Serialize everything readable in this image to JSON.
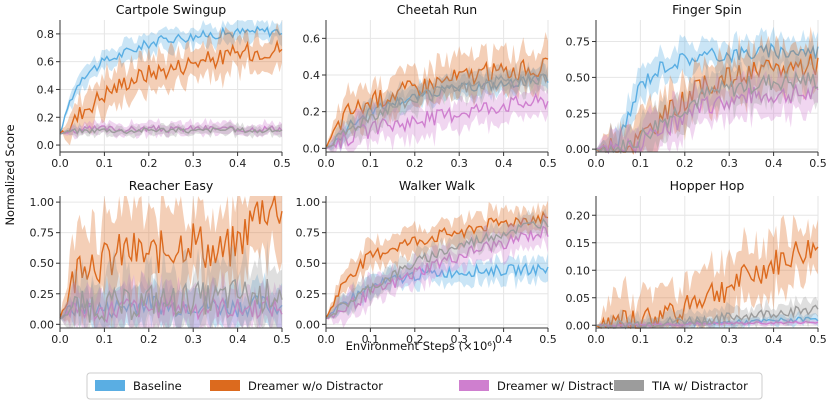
{
  "figure": {
    "ylabel": "Normalized Score",
    "xlabel": "Environment Steps (×10⁶)"
  },
  "legend": [
    {
      "name": "Baseline",
      "color": "#5aaee3"
    },
    {
      "name": "Dreamer w/o Distractor",
      "color": "#dc6a1e"
    },
    {
      "name": "Dreamer w/ Distractor",
      "color": "#cf7fcf"
    },
    {
      "name": "TIA w/ Distractor",
      "color": "#9c9c9c"
    }
  ],
  "chart_data": [
    {
      "type": "line",
      "title": "Cartpole Swingup",
      "xlim": [
        0,
        0.5
      ],
      "ylim": [
        -0.05,
        0.9
      ],
      "xticks": [
        "0.0",
        "0.1",
        "0.2",
        "0.3",
        "0.4",
        "0.5"
      ],
      "yticks": [
        "0.0",
        "0.2",
        "0.4",
        "0.6",
        "0.8"
      ],
      "ytick_values": [
        0,
        0.2,
        0.4,
        0.6,
        0.8
      ],
      "x": [
        0,
        0.02,
        0.05,
        0.1,
        0.15,
        0.2,
        0.25,
        0.3,
        0.35,
        0.4,
        0.45,
        0.5
      ],
      "series": [
        {
          "name": "Baseline",
          "values": [
            0.08,
            0.3,
            0.5,
            0.6,
            0.67,
            0.73,
            0.77,
            0.78,
            0.8,
            0.81,
            0.82,
            0.82
          ],
          "spread": 0.08
        },
        {
          "name": "Dreamer w/o Distractor",
          "values": [
            0.08,
            0.12,
            0.25,
            0.37,
            0.46,
            0.52,
            0.55,
            0.6,
            0.62,
            0.66,
            0.68,
            0.7
          ],
          "spread": 0.15
        },
        {
          "name": "Dreamer w/ Distractor",
          "values": [
            0.08,
            0.1,
            0.11,
            0.12,
            0.11,
            0.12,
            0.11,
            0.12,
            0.12,
            0.11,
            0.12,
            0.12
          ],
          "spread": 0.05
        },
        {
          "name": "TIA w/ Distractor",
          "values": [
            0.08,
            0.1,
            0.1,
            0.11,
            0.1,
            0.11,
            0.11,
            0.1,
            0.11,
            0.11,
            0.1,
            0.11
          ],
          "spread": 0.04
        }
      ]
    },
    {
      "type": "line",
      "title": "Cheetah Run",
      "xlim": [
        0,
        0.5
      ],
      "ylim": [
        -0.02,
        0.7
      ],
      "xticks": [
        "0.0",
        "0.1",
        "0.2",
        "0.3",
        "0.4",
        "0.5"
      ],
      "yticks": [
        "0.0",
        "0.2",
        "0.4",
        "0.6"
      ],
      "ytick_values": [
        0,
        0.2,
        0.4,
        0.6
      ],
      "x": [
        0,
        0.02,
        0.05,
        0.1,
        0.15,
        0.2,
        0.25,
        0.3,
        0.35,
        0.4,
        0.45,
        0.5
      ],
      "series": [
        {
          "name": "Baseline",
          "values": [
            0.0,
            0.03,
            0.12,
            0.2,
            0.25,
            0.28,
            0.31,
            0.33,
            0.34,
            0.35,
            0.37,
            0.38
          ],
          "spread": 0.06
        },
        {
          "name": "Dreamer w/o Distractor",
          "values": [
            0.0,
            0.1,
            0.2,
            0.25,
            0.3,
            0.33,
            0.36,
            0.39,
            0.41,
            0.42,
            0.43,
            0.44
          ],
          "spread": 0.12
        },
        {
          "name": "Dreamer w/ Distractor",
          "values": [
            0.0,
            0.03,
            0.06,
            0.1,
            0.13,
            0.15,
            0.17,
            0.2,
            0.22,
            0.24,
            0.25,
            0.26
          ],
          "spread": 0.1
        },
        {
          "name": "TIA w/ Distractor",
          "values": [
            0.0,
            0.04,
            0.1,
            0.18,
            0.23,
            0.27,
            0.3,
            0.33,
            0.35,
            0.36,
            0.37,
            0.38
          ],
          "spread": 0.08
        }
      ]
    },
    {
      "type": "line",
      "title": "Finger Spin",
      "xlim": [
        0,
        0.5
      ],
      "ylim": [
        -0.02,
        0.9
      ],
      "xticks": [
        "0.0",
        "0.1",
        "0.2",
        "0.3",
        "0.4",
        "0.5"
      ],
      "yticks": [
        "0.00",
        "0.25",
        "0.50",
        "0.75"
      ],
      "ytick_values": [
        0,
        0.25,
        0.5,
        0.75
      ],
      "x": [
        0,
        0.02,
        0.05,
        0.07,
        0.1,
        0.15,
        0.2,
        0.25,
        0.3,
        0.35,
        0.4,
        0.45,
        0.5
      ],
      "series": [
        {
          "name": "Baseline",
          "values": [
            0.0,
            0.0,
            0.02,
            0.2,
            0.45,
            0.58,
            0.63,
            0.65,
            0.66,
            0.67,
            0.68,
            0.68,
            0.68
          ],
          "spread": 0.12
        },
        {
          "name": "Dreamer w/o Distractor",
          "values": [
            0.0,
            0.0,
            0.0,
            0.02,
            0.08,
            0.22,
            0.35,
            0.45,
            0.5,
            0.53,
            0.55,
            0.58,
            0.6
          ],
          "spread": 0.18
        },
        {
          "name": "Dreamer w/ Distractor",
          "values": [
            0.0,
            0.0,
            0.0,
            0.01,
            0.04,
            0.12,
            0.22,
            0.3,
            0.34,
            0.37,
            0.38,
            0.38,
            0.38
          ],
          "spread": 0.15
        },
        {
          "name": "TIA w/ Distractor",
          "values": [
            0.0,
            0.0,
            0.0,
            0.02,
            0.08,
            0.2,
            0.3,
            0.38,
            0.42,
            0.45,
            0.47,
            0.48,
            0.48
          ],
          "spread": 0.15
        }
      ]
    },
    {
      "type": "line",
      "title": "Reacher Easy",
      "xlim": [
        0,
        0.5
      ],
      "ylim": [
        -0.03,
        1.05
      ],
      "xticks": [
        "0.0",
        "0.1",
        "0.2",
        "0.3",
        "0.4",
        "0.5"
      ],
      "yticks": [
        "0.00",
        "0.25",
        "0.50",
        "0.75",
        "1.00"
      ],
      "ytick_values": [
        0,
        0.25,
        0.5,
        0.75,
        1.0
      ],
      "x": [
        0,
        0.02,
        0.05,
        0.1,
        0.15,
        0.2,
        0.25,
        0.3,
        0.35,
        0.4,
        0.45,
        0.5
      ],
      "series": [
        {
          "name": "Baseline",
          "values": [
            0.05,
            0.12,
            0.15,
            0.12,
            0.15,
            0.18,
            0.14,
            0.16,
            0.15,
            0.14,
            0.16,
            0.15
          ],
          "spread": 0.18
        },
        {
          "name": "Dreamer w/o Distractor",
          "values": [
            0.05,
            0.25,
            0.55,
            0.5,
            0.6,
            0.55,
            0.62,
            0.7,
            0.55,
            0.65,
            0.95,
            0.96
          ],
          "spread": 0.4
        },
        {
          "name": "Dreamer w/ Distractor",
          "values": [
            0.05,
            0.1,
            0.12,
            0.1,
            0.14,
            0.12,
            0.15,
            0.13,
            0.14,
            0.12,
            0.14,
            0.13
          ],
          "spread": 0.2
        },
        {
          "name": "TIA w/ Distractor",
          "values": [
            0.05,
            0.12,
            0.14,
            0.16,
            0.15,
            0.2,
            0.18,
            0.22,
            0.2,
            0.25,
            0.22,
            0.28
          ],
          "spread": 0.3
        }
      ]
    },
    {
      "type": "line",
      "title": "Walker Walk",
      "xlim": [
        0,
        0.5
      ],
      "ylim": [
        -0.03,
        1.05
      ],
      "xticks": [
        "0.0",
        "0.1",
        "0.2",
        "0.3",
        "0.4",
        "0.5"
      ],
      "yticks": [
        "0.00",
        "0.25",
        "0.50",
        "0.75",
        "1.00"
      ],
      "ytick_values": [
        0,
        0.25,
        0.5,
        0.75,
        1.0
      ],
      "x": [
        0,
        0.02,
        0.05,
        0.1,
        0.15,
        0.2,
        0.25,
        0.3,
        0.35,
        0.4,
        0.45,
        0.5
      ],
      "series": [
        {
          "name": "Baseline",
          "values": [
            0.05,
            0.1,
            0.2,
            0.3,
            0.36,
            0.4,
            0.42,
            0.43,
            0.44,
            0.44,
            0.45,
            0.45
          ],
          "spread": 0.1
        },
        {
          "name": "Dreamer w/o Distractor",
          "values": [
            0.05,
            0.2,
            0.4,
            0.55,
            0.63,
            0.68,
            0.72,
            0.76,
            0.8,
            0.83,
            0.86,
            0.88
          ],
          "spread": 0.12
        },
        {
          "name": "Dreamer w/ Distractor",
          "values": [
            0.05,
            0.08,
            0.15,
            0.25,
            0.33,
            0.42,
            0.5,
            0.56,
            0.62,
            0.67,
            0.72,
            0.76
          ],
          "spread": 0.12
        },
        {
          "name": "TIA w/ Distractor",
          "values": [
            0.05,
            0.1,
            0.18,
            0.3,
            0.4,
            0.5,
            0.58,
            0.64,
            0.7,
            0.75,
            0.8,
            0.84
          ],
          "spread": 0.1
        }
      ]
    },
    {
      "type": "line",
      "title": "Hopper Hop",
      "xlim": [
        0,
        0.5
      ],
      "ylim": [
        -0.005,
        0.235
      ],
      "xticks": [
        "0.0",
        "0.1",
        "0.2",
        "0.3",
        "0.4",
        "0.5"
      ],
      "yticks": [
        "0.00",
        "0.05",
        "0.10",
        "0.15",
        "0.20"
      ],
      "ytick_values": [
        0,
        0.05,
        0.1,
        0.15,
        0.2
      ],
      "x": [
        0,
        0.02,
        0.05,
        0.1,
        0.15,
        0.2,
        0.25,
        0.3,
        0.35,
        0.4,
        0.45,
        0.5
      ],
      "series": [
        {
          "name": "Baseline",
          "values": [
            0.0,
            0.0,
            0.0,
            0.001,
            0.002,
            0.003,
            0.004,
            0.005,
            0.006,
            0.008,
            0.01,
            0.012
          ],
          "spread": 0.01
        },
        {
          "name": "Dreamer w/o Distractor",
          "values": [
            0.0,
            0.0,
            0.0,
            0.005,
            0.02,
            0.04,
            0.055,
            0.07,
            0.09,
            0.11,
            0.13,
            0.14
          ],
          "spread": 0.06
        },
        {
          "name": "Dreamer w/ Distractor",
          "values": [
            0.0,
            0.0,
            0.0,
            0.0,
            0.001,
            0.002,
            0.003,
            0.003,
            0.004,
            0.004,
            0.005,
            0.005
          ],
          "spread": 0.005
        },
        {
          "name": "TIA w/ Distractor",
          "values": [
            0.0,
            0.0,
            0.0,
            0.002,
            0.005,
            0.008,
            0.01,
            0.014,
            0.018,
            0.022,
            0.026,
            0.03
          ],
          "spread": 0.02
        }
      ]
    }
  ]
}
